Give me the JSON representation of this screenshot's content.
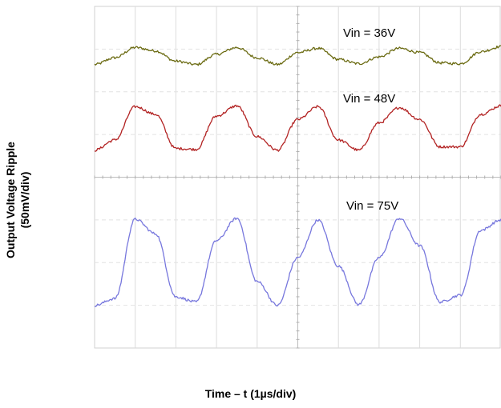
{
  "chart_data": {
    "type": "line",
    "title": "",
    "xlabel": "Time – t (1µs/div)",
    "ylabel_line1": "Output Voltage Ripple",
    "ylabel_line2": "(50mV/div)",
    "x_unit": "µs",
    "x_divisions": 10,
    "y_divisions": 8,
    "xlim": [
      0,
      10
    ],
    "grid": true,
    "series": [
      {
        "name": "Vin = 36V",
        "color": "#6b6b12",
        "x": [
          0.0,
          0.5,
          1.0,
          1.5,
          2.0,
          2.5,
          3.0,
          3.5,
          4.0,
          4.5,
          5.0,
          5.5,
          6.0,
          6.5,
          7.0,
          7.5,
          8.0,
          8.5,
          9.0,
          9.5,
          10.0
        ],
        "y_mV": [
          -10,
          -2,
          10,
          6,
          -6,
          -10,
          2,
          10,
          -2,
          -10,
          4,
          9,
          -4,
          -9,
          -1,
          9,
          4,
          -8,
          -9,
          5,
          11
        ]
      },
      {
        "name": "Vin = 48V",
        "color": "#b22222",
        "x": [
          0.0,
          0.5,
          1.0,
          1.5,
          2.0,
          2.5,
          3.0,
          3.5,
          4.0,
          4.5,
          5.0,
          5.5,
          6.0,
          6.5,
          7.0,
          7.5,
          8.0,
          8.5,
          9.0,
          9.5,
          10.0
        ],
        "y_mV": [
          -26,
          -14,
          25,
          16,
          -24,
          -25,
          14,
          26,
          -10,
          -26,
          10,
          25,
          -14,
          -26,
          6,
          24,
          10,
          -22,
          -22,
          16,
          26
        ]
      },
      {
        "name": "Vin = 75V",
        "color": "#7777dd",
        "x": [
          0.0,
          0.5,
          1.0,
          1.5,
          2.0,
          2.5,
          3.0,
          3.5,
          4.0,
          4.5,
          5.0,
          5.5,
          6.0,
          6.5,
          7.0,
          7.5,
          8.0,
          8.5,
          9.0,
          9.5,
          10.0
        ],
        "y_mV": [
          -56,
          -48,
          45,
          28,
          -46,
          -52,
          20,
          46,
          -28,
          -56,
          0,
          44,
          -10,
          -55,
          0,
          46,
          14,
          -52,
          -44,
          32,
          44
        ]
      }
    ]
  }
}
